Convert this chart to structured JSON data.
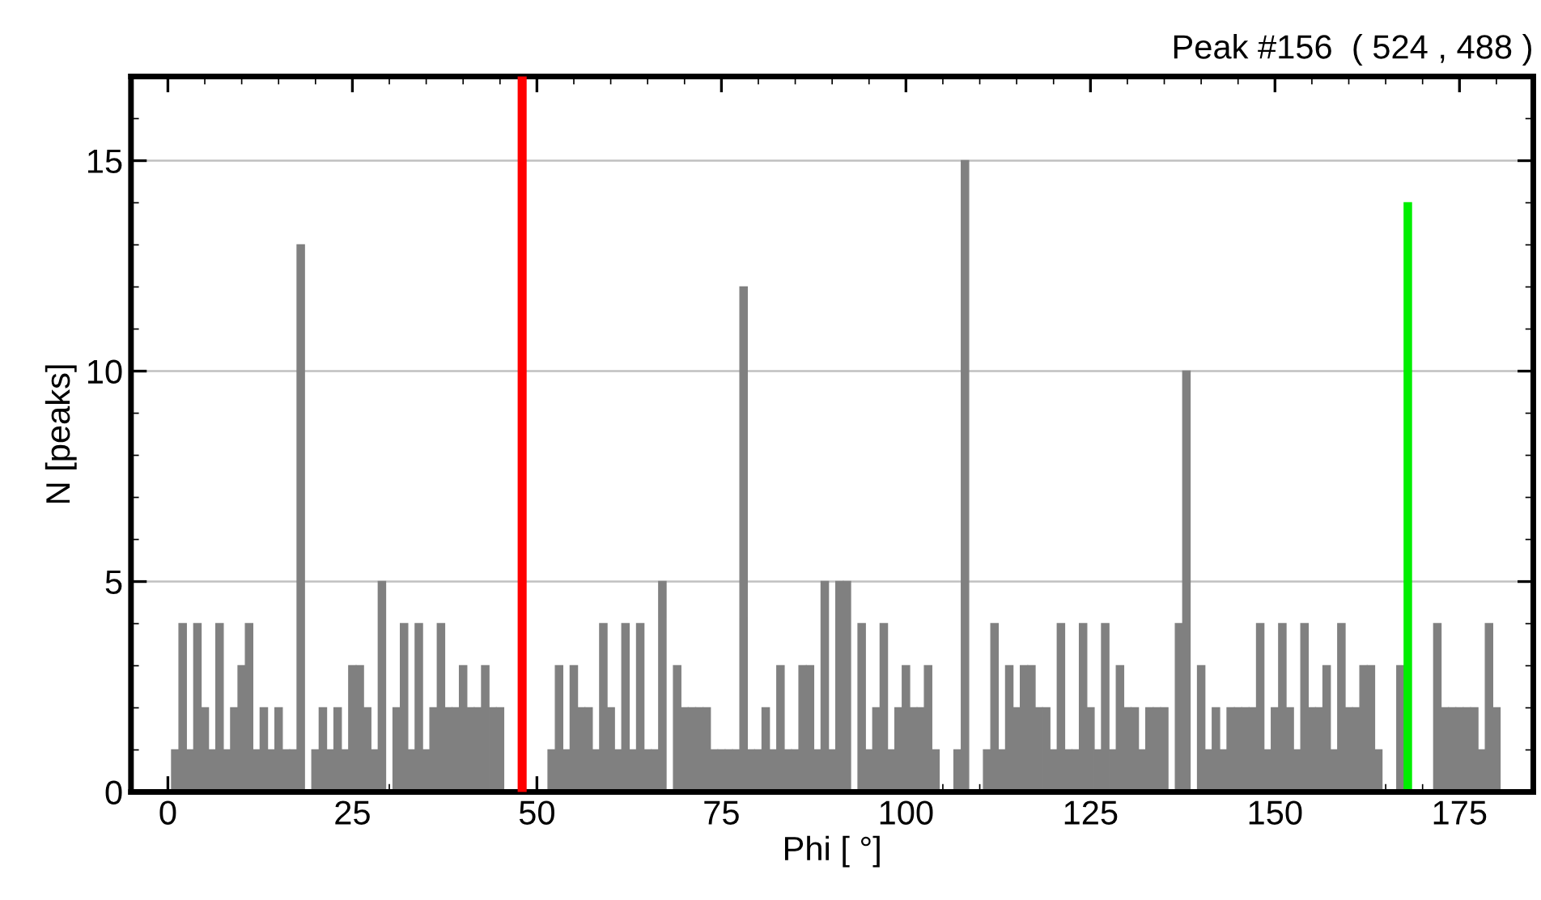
{
  "chart_data": {
    "type": "bar",
    "title": "Peak #156  ( 524 , 488 )",
    "xlabel": "Phi [ °]",
    "ylabel": "N [peaks]",
    "xlim": [
      -5,
      185
    ],
    "xticks": [
      0,
      25,
      50,
      75,
      100,
      125,
      150,
      175
    ],
    "ylim": [
      0,
      17
    ],
    "yticks": [
      0,
      5,
      10,
      15
    ],
    "grid": "y",
    "x": [
      0,
      1,
      2,
      3,
      4,
      5,
      6,
      7,
      8,
      9,
      10,
      11,
      12,
      13,
      14,
      15,
      16,
      17,
      18,
      19,
      20,
      21,
      22,
      23,
      24,
      25,
      26,
      27,
      28,
      29,
      30,
      31,
      32,
      33,
      34,
      35,
      36,
      37,
      38,
      39,
      40,
      41,
      42,
      43,
      44,
      45,
      46,
      47,
      48,
      49,
      50,
      51,
      52,
      53,
      54,
      55,
      56,
      57,
      58,
      59,
      60,
      61,
      62,
      63,
      64,
      65,
      66,
      67,
      68,
      69,
      70,
      71,
      72,
      73,
      74,
      75,
      76,
      77,
      78,
      79,
      80,
      81,
      82,
      83,
      84,
      85,
      86,
      87,
      88,
      89,
      90,
      91,
      92,
      93,
      94,
      95,
      96,
      97,
      98,
      99,
      100,
      101,
      102,
      103,
      104,
      105,
      106,
      107,
      108,
      109,
      110,
      111,
      112,
      113,
      114,
      115,
      116,
      117,
      118,
      119,
      120,
      121,
      122,
      123,
      124,
      125,
      126,
      127,
      128,
      129,
      130,
      131,
      132,
      133,
      134,
      135,
      136,
      137,
      138,
      139,
      140,
      141,
      142,
      143,
      144,
      145,
      146,
      147,
      148,
      149,
      150,
      151,
      152,
      153,
      154,
      155,
      156,
      157,
      158,
      159,
      160,
      161,
      162,
      163,
      164,
      165,
      166,
      167,
      168,
      169,
      170,
      171,
      172,
      173,
      174,
      175,
      176,
      177,
      178,
      179,
      180
    ],
    "series": [
      {
        "color": "#808080",
        "values": [
          0,
          1,
          4,
          1,
          4,
          2,
          1,
          4,
          1,
          2,
          3,
          4,
          1,
          2,
          1,
          2,
          1,
          1,
          13,
          0,
          1,
          2,
          1,
          2,
          1,
          3,
          3,
          2,
          1,
          5,
          0,
          2,
          4,
          1,
          4,
          1,
          2,
          4,
          2,
          2,
          3,
          2,
          2,
          3,
          2,
          2,
          0,
          0,
          0,
          0,
          0,
          0,
          1,
          3,
          1,
          3,
          2,
          2,
          1,
          4,
          2,
          1,
          4,
          1,
          4,
          1,
          1,
          5,
          0,
          3,
          2,
          2,
          2,
          2,
          1,
          1,
          1,
          1,
          12,
          1,
          1,
          2,
          1,
          3,
          1,
          1,
          3,
          3,
          1,
          5,
          1,
          5,
          5,
          0,
          4,
          1,
          2,
          4,
          1,
          2,
          3,
          2,
          2,
          3,
          1,
          0,
          0,
          1,
          15,
          0,
          0,
          1,
          4,
          1,
          3,
          2,
          3,
          3,
          2,
          2,
          1,
          4,
          1,
          1,
          4,
          2,
          1,
          4,
          1,
          3,
          2,
          2,
          1,
          2,
          2,
          2,
          0,
          4,
          10,
          0,
          3,
          1,
          2,
          1,
          2,
          2,
          2,
          2,
          4,
          1,
          2,
          4,
          2,
          1,
          4,
          2,
          2,
          3,
          1,
          4,
          2,
          2,
          3,
          3,
          1,
          0,
          0,
          3,
          null,
          0,
          0,
          0,
          4,
          2,
          2,
          2,
          2,
          2,
          1,
          4,
          2
        ]
      },
      {
        "color": "#00ee00",
        "x": [
          168
        ],
        "values": [
          14
        ]
      }
    ],
    "ref_lines": [
      {
        "axis": "x",
        "value": 48,
        "color": "#ff0000"
      }
    ]
  }
}
